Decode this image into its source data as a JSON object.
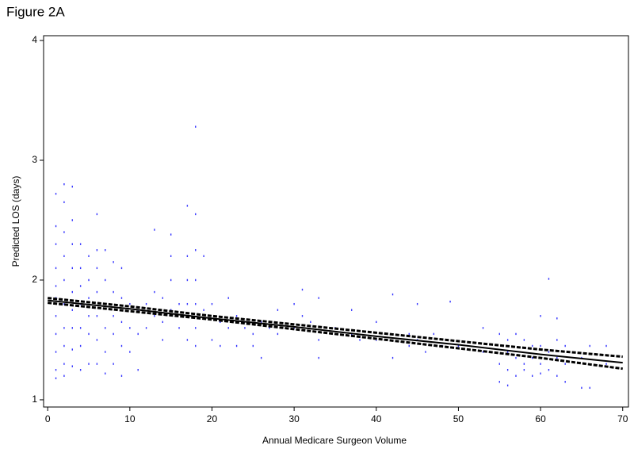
{
  "chart_data": {
    "type": "scatter",
    "title": "Figure 2A",
    "x_label": "Annual Medicare Surgeon Volume",
    "y_label": "Predicted LOS (days)",
    "xlim": [
      -0.5,
      70.7
    ],
    "ylim": [
      0.94,
      4.04
    ],
    "xticks": [
      0,
      10,
      20,
      30,
      40,
      50,
      60,
      70
    ],
    "yticks": [
      1,
      2,
      3,
      4
    ],
    "grid": false,
    "series": [
      {
        "mode": "markers",
        "color": "#3333ff",
        "x": [
          1,
          1,
          1,
          1,
          1,
          1,
          1,
          1,
          1,
          1,
          1,
          2,
          2,
          2,
          2,
          2,
          2,
          2,
          2,
          2,
          2,
          3,
          3,
          3,
          3,
          3,
          3,
          3,
          3,
          3,
          4,
          4,
          4,
          4,
          4,
          4,
          4,
          5,
          5,
          5,
          5,
          5,
          5,
          6,
          6,
          6,
          6,
          6,
          6,
          6,
          7,
          7,
          7,
          7,
          7,
          7,
          8,
          8,
          8,
          8,
          8,
          9,
          9,
          9,
          9,
          9,
          10,
          10,
          10,
          11,
          11,
          11,
          12,
          12,
          13,
          13,
          13,
          14,
          14,
          14,
          15,
          15,
          15,
          15,
          16,
          16,
          17,
          17,
          17,
          17,
          17,
          18,
          18,
          18,
          18,
          18,
          18,
          18,
          19,
          19,
          20,
          20,
          21,
          21,
          22,
          22,
          23,
          23,
          24,
          25,
          25,
          26,
          26,
          27,
          28,
          28,
          30,
          30,
          31,
          31,
          32,
          33,
          33,
          33,
          35,
          37,
          37,
          38,
          40,
          40,
          42,
          42,
          44,
          44,
          45,
          45,
          46,
          47,
          48,
          49,
          50,
          53,
          53,
          55,
          55,
          55,
          56,
          56,
          56,
          56,
          57,
          57,
          57,
          58,
          58,
          58,
          59,
          59,
          59,
          60,
          60,
          60,
          60,
          61,
          61,
          61,
          62,
          62,
          62,
          62,
          63,
          63,
          63,
          65,
          65,
          66,
          66,
          68,
          68
        ],
        "values": [
          2.72,
          2.45,
          2.3,
          2.1,
          1.95,
          1.85,
          1.7,
          1.55,
          1.4,
          1.25,
          1.18,
          2.8,
          2.65,
          2.4,
          2.2,
          2.0,
          1.8,
          1.6,
          1.45,
          1.3,
          1.2,
          2.78,
          2.5,
          2.3,
          2.1,
          1.9,
          1.75,
          1.6,
          1.42,
          1.28,
          2.3,
          2.1,
          1.95,
          1.8,
          1.6,
          1.45,
          1.25,
          2.2,
          2.0,
          1.85,
          1.7,
          1.55,
          1.3,
          2.55,
          2.25,
          2.1,
          1.9,
          1.7,
          1.5,
          1.3,
          2.25,
          2.0,
          1.8,
          1.6,
          1.4,
          1.22,
          2.15,
          1.9,
          1.7,
          1.55,
          1.3,
          2.1,
          1.85,
          1.65,
          1.45,
          1.2,
          1.8,
          1.6,
          1.4,
          1.75,
          1.55,
          1.25,
          1.8,
          1.6,
          2.42,
          1.9,
          1.7,
          1.85,
          1.65,
          1.5,
          2.38,
          2.2,
          2.0,
          1.75,
          1.8,
          1.6,
          2.62,
          2.2,
          2.0,
          1.8,
          1.5,
          3.28,
          2.55,
          2.25,
          2.0,
          1.8,
          1.6,
          1.45,
          2.2,
          1.75,
          1.8,
          1.5,
          1.65,
          1.45,
          1.85,
          1.6,
          1.7,
          1.45,
          1.6,
          1.55,
          1.45,
          1.65,
          1.35,
          1.6,
          1.75,
          1.55,
          1.8,
          1.6,
          1.92,
          1.7,
          1.65,
          1.85,
          1.5,
          1.35,
          1.6,
          1.75,
          1.55,
          1.5,
          1.65,
          1.5,
          1.88,
          1.35,
          1.55,
          1.45,
          1.8,
          1.5,
          1.4,
          1.55,
          1.45,
          1.82,
          1.45,
          1.6,
          1.4,
          1.55,
          1.3,
          1.15,
          1.5,
          1.4,
          1.25,
          1.12,
          1.55,
          1.35,
          1.2,
          1.5,
          1.3,
          1.25,
          1.45,
          1.35,
          1.2,
          1.7,
          1.45,
          1.3,
          1.22,
          2.01,
          1.4,
          1.25,
          1.68,
          1.5,
          1.35,
          1.2,
          1.45,
          1.3,
          1.15,
          1.35,
          1.1,
          1.45,
          1.1,
          1.45,
          1.3
        ]
      },
      {
        "mode": "line",
        "dash": false,
        "color": "#000000",
        "x": [
          0,
          10,
          20,
          30,
          40,
          50,
          60,
          70
        ],
        "values": [
          1.83,
          1.76,
          1.68,
          1.61,
          1.53,
          1.46,
          1.38,
          1.31
        ]
      },
      {
        "mode": "line",
        "dash": true,
        "color": "#000000",
        "x": [
          0,
          10,
          20,
          30,
          40,
          50,
          60,
          70
        ],
        "values": [
          1.85,
          1.78,
          1.7,
          1.63,
          1.56,
          1.49,
          1.42,
          1.36
        ]
      },
      {
        "mode": "line",
        "dash": true,
        "color": "#000000",
        "x": [
          0,
          10,
          20,
          30,
          40,
          50,
          60,
          70
        ],
        "values": [
          1.81,
          1.74,
          1.67,
          1.59,
          1.51,
          1.43,
          1.35,
          1.26
        ]
      }
    ]
  }
}
